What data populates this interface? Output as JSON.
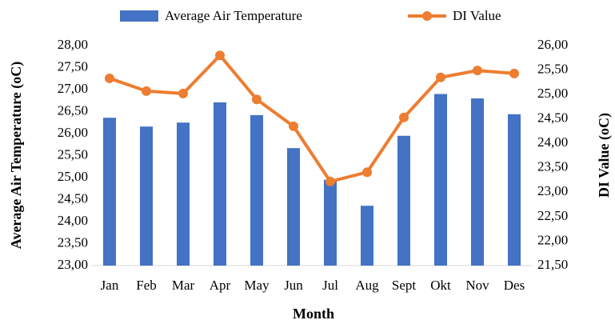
{
  "chart_data": {
    "type": "bar_line",
    "x_label": "Month",
    "y_label": "Average Air Temperature (oC)",
    "y2_label": "DI Value (oC)",
    "categories": [
      "Jan",
      "Feb",
      "Mar",
      "Apr",
      "May",
      "Jun",
      "Jul",
      "Aug",
      "Sept",
      "Okt",
      "Nov",
      "Des"
    ],
    "series": [
      {
        "name": "Average Air Temperature",
        "type": "bar",
        "color": "#4472c4",
        "values": [
          26.36,
          26.16,
          26.25,
          26.71,
          26.42,
          25.67,
          24.95,
          24.36,
          25.95,
          26.9,
          26.8,
          26.44
        ]
      },
      {
        "name": "DI Value",
        "type": "line",
        "axis": "y2",
        "color": "#ed7d31",
        "values": [
          25.33,
          25.07,
          25.02,
          25.8,
          24.9,
          24.35,
          23.22,
          23.41,
          24.53,
          25.35,
          25.49,
          25.43
        ]
      }
    ],
    "ylim": [
      23,
      28
    ],
    "yticks": [
      {
        "value": 23,
        "label": "23,00"
      },
      {
        "value": 23.5,
        "label": "23,50"
      },
      {
        "value": 24,
        "label": "24,00"
      },
      {
        "value": 24.5,
        "label": "24,50"
      },
      {
        "value": 25,
        "label": "25,00"
      },
      {
        "value": 25.5,
        "label": "25,50"
      },
      {
        "value": 26,
        "label": "26,00"
      },
      {
        "value": 26.5,
        "label": "26,50"
      },
      {
        "value": 27,
        "label": "27,00"
      },
      {
        "value": 27.5,
        "label": "27,50"
      },
      {
        "value": 28,
        "label": "28,00"
      }
    ],
    "y2lim": [
      21.5,
      26
    ],
    "y2ticks": [
      {
        "value": 21.5,
        "label": "21,50"
      },
      {
        "value": 22,
        "label": "22,00"
      },
      {
        "value": 22.5,
        "label": "22,50"
      },
      {
        "value": 23,
        "label": "23,00"
      },
      {
        "value": 23.5,
        "label": "23,50"
      },
      {
        "value": 24,
        "label": "24,00"
      },
      {
        "value": 24.5,
        "label": "24,50"
      },
      {
        "value": 25,
        "label": "25,00"
      },
      {
        "value": 25.5,
        "label": "25,50"
      },
      {
        "value": 26,
        "label": "26,00"
      }
    ]
  }
}
